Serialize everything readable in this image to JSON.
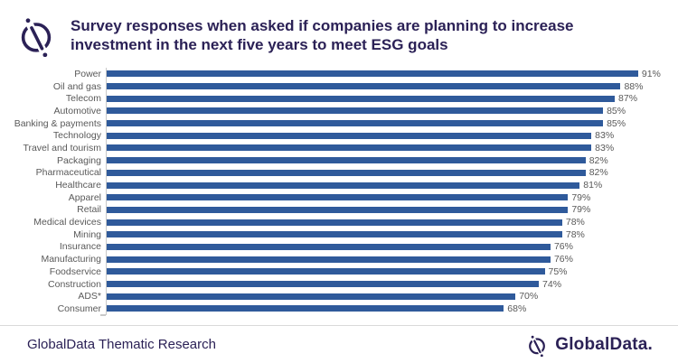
{
  "header": {
    "title_line1": "Survey responses when asked if companies are planning to increase",
    "title_line2": "investment in the next five years to meet ESG goals",
    "logo_icon": "globaldata-compass-icon"
  },
  "chart_data": {
    "type": "bar",
    "orientation": "horizontal",
    "title": "Survey responses when asked if companies are planning to increase investment in the next five years to meet ESG goals",
    "categories": [
      "Power",
      "Oil and gas",
      "Telecom",
      "Automotive",
      "Banking & payments",
      "Technology",
      "Travel and tourism",
      "Packaging",
      "Pharmaceutical",
      "Healthcare",
      "Apparel",
      "Retail",
      "Medical devices",
      "Mining",
      "Insurance",
      "Manufacturing",
      "Foodservice",
      "Construction",
      "ADS*",
      "Consumer"
    ],
    "values": [
      91,
      88,
      87,
      85,
      85,
      83,
      83,
      82,
      82,
      81,
      79,
      79,
      78,
      78,
      76,
      76,
      75,
      74,
      70,
      68
    ],
    "value_suffix": "%",
    "xlim": [
      0,
      100
    ],
    "grid": false,
    "legend": false,
    "data_labels": true,
    "bar_color": "#2F5A9B",
    "label_color": "#595959",
    "axis_color": "#C9C9C9"
  },
  "footer": {
    "left_text": "GlobalData Thematic Research",
    "brand_text": "GlobalData.",
    "brand_icon": "globaldata-compass-icon"
  },
  "colors": {
    "title": "#2B2156",
    "background": "#FFFFFF",
    "divider": "#D9D9D9"
  }
}
